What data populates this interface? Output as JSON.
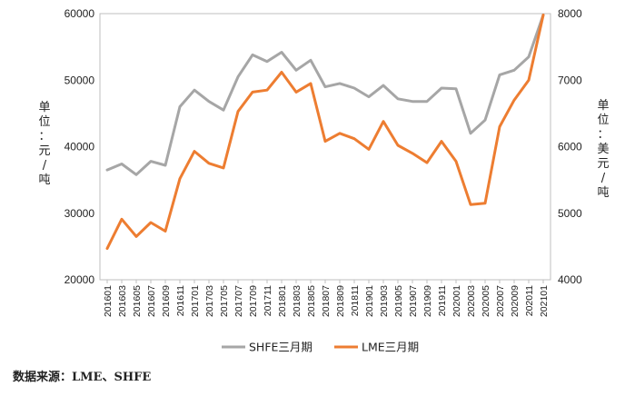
{
  "chart_data": {
    "type": "line",
    "categories": [
      "201601",
      "201603",
      "201605",
      "201607",
      "201609",
      "201611",
      "201701",
      "201703",
      "201705",
      "201707",
      "201709",
      "201711",
      "201801",
      "201803",
      "201805",
      "201807",
      "201809",
      "201811",
      "201901",
      "201903",
      "201905",
      "201907",
      "201909",
      "201911",
      "202001",
      "202003",
      "202005",
      "202007",
      "202009",
      "202011",
      "202101"
    ],
    "series": [
      {
        "name": "SHFE三月期",
        "axis": "left",
        "color": "#a6a6a6",
        "values": [
          36500,
          37400,
          35800,
          37800,
          37200,
          46000,
          48500,
          46800,
          45500,
          50500,
          53800,
          52800,
          54200,
          51500,
          53000,
          49000,
          49500,
          48800,
          47500,
          49200,
          47200,
          46800,
          46800,
          48800,
          48700,
          42000,
          44000,
          50800,
          51500,
          53500,
          59800
        ]
      },
      {
        "name": "LME三月期",
        "axis": "right",
        "color": "#ed7d31",
        "values": [
          4470,
          4910,
          4650,
          4860,
          4730,
          5520,
          5930,
          5750,
          5680,
          6530,
          6820,
          6850,
          7120,
          6820,
          6950,
          6080,
          6200,
          6120,
          5960,
          6380,
          6020,
          5900,
          5760,
          6080,
          5780,
          5130,
          5150,
          6300,
          6700,
          7000,
          7980
        ]
      }
    ],
    "left_axis": {
      "label": "单位：元/吨",
      "min": 20000,
      "max": 60000,
      "ticks": [
        "20000",
        "30000",
        "40000",
        "50000",
        "60000"
      ]
    },
    "right_axis": {
      "label": "单位：美元/吨",
      "min": 4000,
      "max": 8000,
      "ticks": [
        "4000",
        "5000",
        "6000",
        "7000",
        "8000"
      ]
    },
    "grid": false,
    "legend": "bottom-center"
  },
  "source": "数据来源：LME、SHFE"
}
